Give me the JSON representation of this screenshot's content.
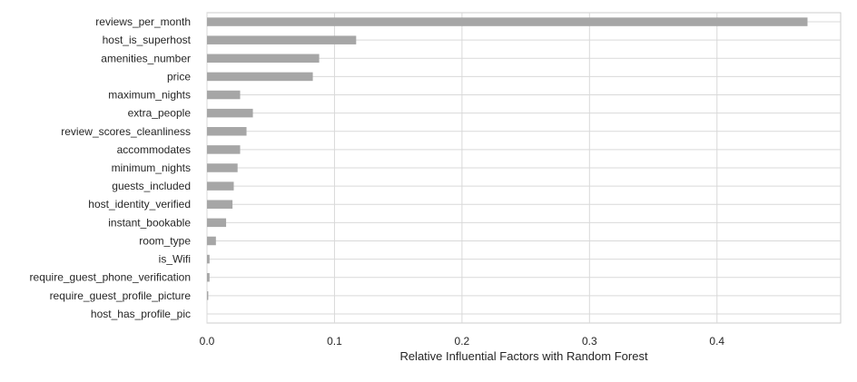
{
  "chart_data": {
    "type": "bar",
    "orientation": "horizontal",
    "categories": [
      "reviews_per_month",
      "host_is_superhost",
      "amenities_number",
      "price",
      "maximum_nights",
      "extra_people",
      "review_scores_cleanliness",
      "accommodates",
      "minimum_nights",
      "guests_included",
      "host_identity_verified",
      "instant_bookable",
      "room_type",
      "is_Wifi",
      "require_guest_phone_verification",
      "require_guest_profile_picture",
      "host_has_profile_pic"
    ],
    "values": [
      0.471,
      0.117,
      0.088,
      0.083,
      0.026,
      0.036,
      0.031,
      0.026,
      0.024,
      0.021,
      0.02,
      0.015,
      0.007,
      0.002,
      0.002,
      0.001,
      0.0
    ],
    "xlabel": "Relative Influential Factors with Random Forest",
    "ylabel": "",
    "xlim": [
      0,
      0.497
    ],
    "xticks": [
      0.0,
      0.1,
      0.2,
      0.3,
      0.4
    ],
    "xtick_labels": [
      "0.0",
      "0.1",
      "0.2",
      "0.3",
      "0.4"
    ],
    "grid": true,
    "bar_color": "#a6a6a6",
    "grid_color": "#d9d9d9"
  }
}
